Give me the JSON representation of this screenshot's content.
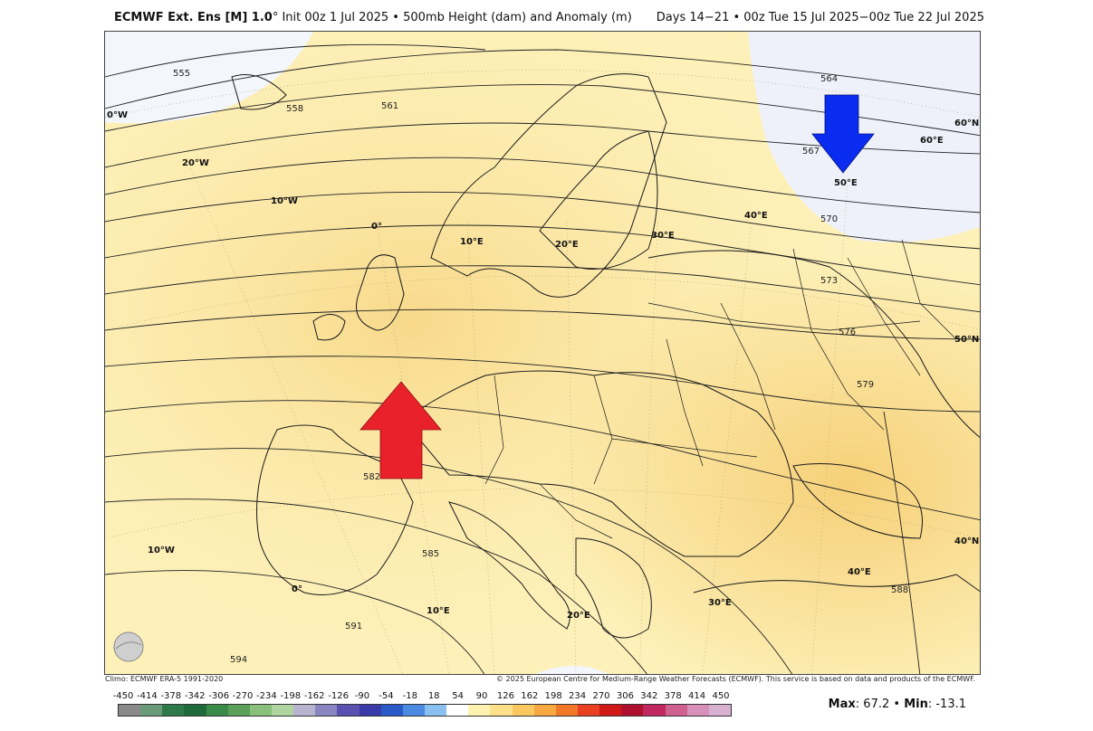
{
  "title": {
    "left_bold": "ECMWF Ext. Ens [M] 1.0",
    "left_rest": "° Init 00z 1 Jul 2025 • 500mb Height (dam) and Anomaly (m)",
    "right": "Days 14−21 • 00z Tue 15 Jul 2025−00z Tue 22 Jul 2025"
  },
  "contours": [
    "555",
    "558",
    "561",
    "564",
    "567",
    "570",
    "573",
    "576",
    "579",
    "582",
    "585",
    "588",
    "591",
    "594"
  ],
  "grid_labels": {
    "lon_west": [
      "0°W",
      "20°W",
      "10°W",
      "0°",
      "10°E",
      "20°E",
      "30°E",
      "40°E",
      "50°E",
      "60°E"
    ],
    "lat": [
      "60°N",
      "50°N",
      "40°N"
    ],
    "lon_south": [
      "10°W",
      "0°",
      "10°E",
      "20°E",
      "30°E",
      "40°E"
    ]
  },
  "arrows": [
    {
      "name": "positive-anomaly-arrow",
      "color": "#e8212b",
      "direction": "up"
    },
    {
      "name": "negative-anomaly-arrow",
      "color": "#0a2bf0",
      "direction": "down"
    }
  ],
  "footer": {
    "climo": "Climo: ECMWF ERA-5 1991-2020",
    "copyright": "© 2025 European Centre for Medium-Range Weather Forecasts (ECMWF). This service is based on data and products of the ECMWF."
  },
  "scale": {
    "labels": [
      "-450",
      "-414",
      "-378",
      "-342",
      "-306",
      "-270",
      "-234",
      "-198",
      "-162",
      "-126",
      "-90",
      "-54",
      "-18",
      "18",
      "54",
      "90",
      "126",
      "162",
      "198",
      "234",
      "270",
      "306",
      "342",
      "378",
      "414",
      "450"
    ],
    "colors": [
      "#8a8a8a",
      "#6a9a7a",
      "#2e7a4a",
      "#1f6a3a",
      "#3a8a4a",
      "#5aa05a",
      "#8ac07a",
      "#b0d4a0",
      "#b8b4d0",
      "#8a84c0",
      "#5a50b0",
      "#3a3aa8",
      "#2a5ac8",
      "#4a8ae0",
      "#8ac0f0",
      "#ffffff",
      "#fff2b0",
      "#fde08a",
      "#fbc860",
      "#f8a840",
      "#f07828",
      "#e84020",
      "#d01818",
      "#b01030",
      "#c02860",
      "#d06090",
      "#d890b8",
      "#d8b0d0"
    ]
  },
  "maxmin": {
    "max_label": "Max",
    "max_value": "67.2",
    "min_label": "Min",
    "min_value": "-13.1"
  },
  "logo": "WeatherBELL"
}
